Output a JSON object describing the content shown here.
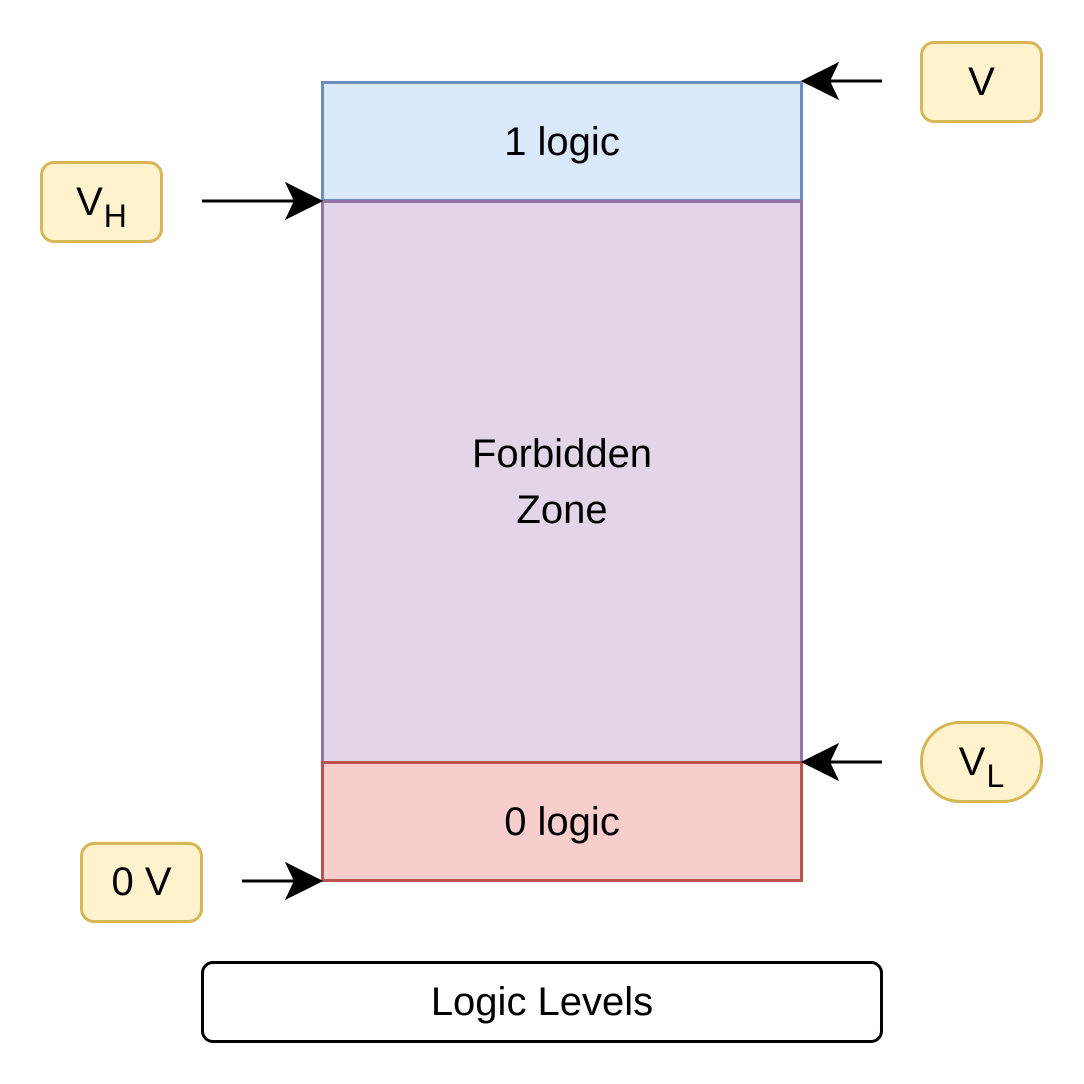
{
  "zones": {
    "one_logic": "1 logic",
    "forbidden_line1": "Forbidden",
    "forbidden_line2": "Zone",
    "zero_logic": "0 logic"
  },
  "labels": {
    "v": "V",
    "vh_main": "V",
    "vh_sub": "H",
    "vl_main": "V",
    "vl_sub": "L",
    "zero_v": "0 V"
  },
  "title": "Logic Levels",
  "colors": {
    "one_logic_fill": "#dae8fc",
    "one_logic_stroke": "#6c8ebf",
    "forbidden_fill": "#e1d5e7",
    "forbidden_stroke": "#9673a6",
    "zero_logic_fill": "#f8cecc",
    "zero_logic_stroke": "#b85450",
    "label_fill": "#fff2cc",
    "label_stroke": "#d6b656"
  }
}
